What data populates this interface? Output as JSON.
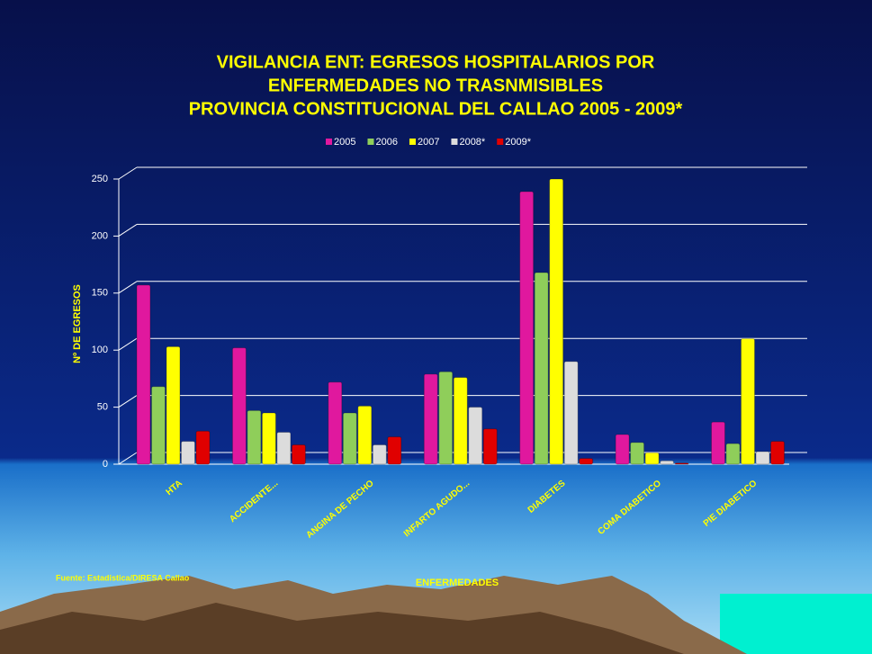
{
  "chart_data": {
    "type": "bar",
    "title": [
      "VIGILANCIA  ENT: EGRESOS HOSPITALARIOS POR",
      "ENFERMEDADES NO TRASNMISIBLES",
      "PROVINCIA CONSTITUCIONAL DEL CALLAO  2005 - 2009*"
    ],
    "y_label": "Nº DE EGRESOS",
    "x_label": "ENFERMEDADES",
    "source": "Fuente: Estadistica/DIRESA Callao",
    "categories": [
      "HTA",
      "ACCIDENTE...",
      "ANGINA DE PECHO",
      "INFARTO AGUDO...",
      "DIABETES",
      "COMA DIABETICO",
      "PIE DIABETICO"
    ],
    "series": [
      {
        "name": "2005",
        "color": "#e0189e",
        "values": [
          157,
          102,
          72,
          79,
          239,
          26,
          37
        ]
      },
      {
        "name": "2006",
        "color": "#8fce5a",
        "values": [
          68,
          47,
          45,
          81,
          168,
          19,
          18
        ]
      },
      {
        "name": "2007",
        "color": "#ffff00",
        "values": [
          103,
          45,
          51,
          76,
          250,
          10,
          110
        ]
      },
      {
        "name": "2008*",
        "color": "#dcdcdc",
        "values": [
          20,
          28,
          17,
          50,
          90,
          3,
          11
        ]
      },
      {
        "name": "2009*",
        "color": "#e00000",
        "values": [
          29,
          17,
          24,
          31,
          5,
          1,
          20
        ]
      }
    ],
    "ylim": [
      0,
      250
    ],
    "yticks": [
      0,
      50,
      100,
      150,
      200,
      250
    ],
    "grid": true
  }
}
